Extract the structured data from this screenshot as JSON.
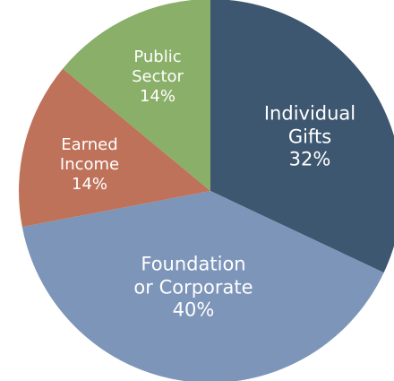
{
  "chart_data": {
    "type": "pie",
    "categories": [
      "Individual\nGifts",
      "Foundation\nor Corporate",
      "Earned\nIncome",
      "Public\nSector"
    ],
    "values": [
      32,
      40,
      14,
      14
    ],
    "value_labels": [
      "32%",
      "40%",
      "14%",
      "14%"
    ],
    "colors": [
      "#3e5770",
      "#7d95b8",
      "#bf725a",
      "#8aaf69"
    ]
  }
}
